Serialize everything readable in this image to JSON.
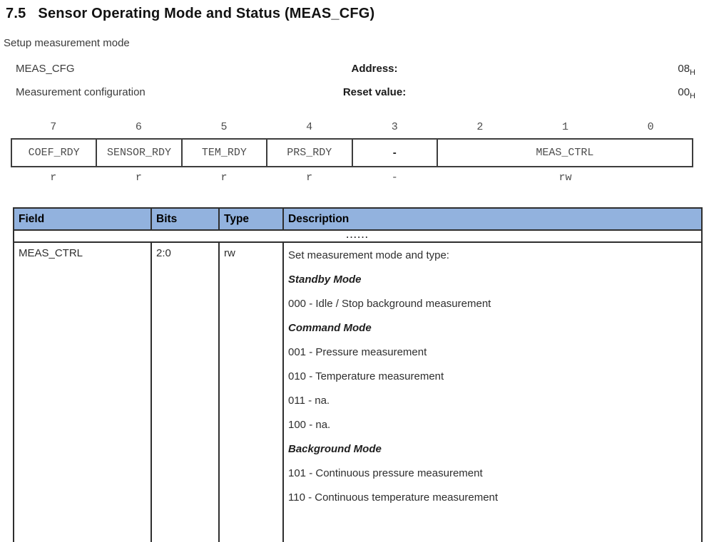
{
  "page": {
    "heading_number": "7.5",
    "heading_title": "Sensor Operating Mode and Status (MEAS_CFG)",
    "subtitle": "Setup measurement mode"
  },
  "register_info": {
    "name": "MEAS_CFG",
    "description": "Measurement configuration",
    "address_label": "Address:",
    "address_value": "08",
    "reset_label": "Reset value:",
    "reset_value": "00",
    "hex_suffix": "H"
  },
  "register_diagram": {
    "bit_numbers": [
      "7",
      "6",
      "5",
      "4",
      "3",
      "2",
      "1",
      "0"
    ],
    "cells": [
      {
        "label": "COEF_RDY",
        "access": "r"
      },
      {
        "label": "SENSOR_RDY",
        "access": "r"
      },
      {
        "label": "TEM_RDY",
        "access": "r"
      },
      {
        "label": "PRS_RDY",
        "access": "r"
      },
      {
        "label": "-",
        "access": "-"
      },
      {
        "label": "MEAS_CTRL",
        "access": "rw"
      }
    ]
  },
  "field_table": {
    "headers": {
      "field": "Field",
      "bits": "Bits",
      "type": "Type",
      "description": "Description"
    },
    "ellipsis_row": "......",
    "row": {
      "field": "MEAS_CTRL",
      "bits": "2:0",
      "type": "rw",
      "description_lines": [
        "Set measurement mode and type:",
        "Standby Mode",
        "000 - Idle / Stop background measurement",
        "Command Mode",
        "001 - Pressure measurement",
        "010 - Temperature measurement",
        "011 - na.",
        "100 - na.",
        "Background Mode",
        "101 - Continuous pressure measurement",
        "110 - Continuous temperature measurement"
      ]
    }
  }
}
